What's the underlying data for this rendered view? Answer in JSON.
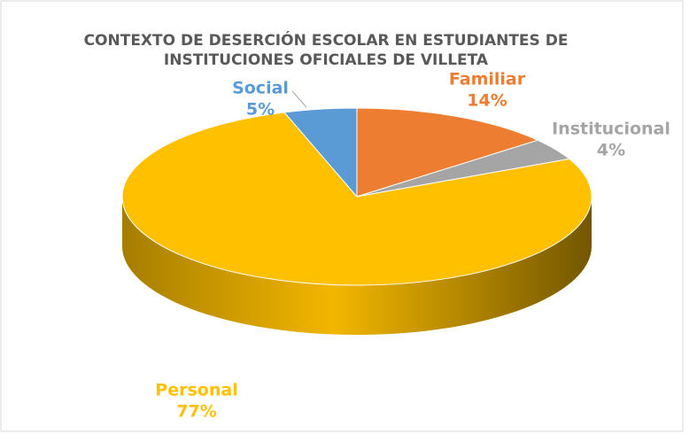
{
  "chart_data": {
    "type": "pie",
    "title": [
      "CONTEXTO DE DESERCIÓN ESCOLAR EN ESTUDIANTES DE",
      "INSTITUCIONES OFICIALES DE VILLETA"
    ],
    "categories": [
      "Familiar",
      "Institucional",
      "Personal",
      "Social"
    ],
    "values": [
      14,
      4,
      77,
      5
    ],
    "value_labels": [
      "14%",
      "4%",
      "77%",
      "5%"
    ],
    "colors": [
      "#ED7D31",
      "#A5A5A5",
      "#FFC000",
      "#5B9BD5"
    ],
    "label_colors": [
      "#ED7D31",
      "#A5A5A5",
      "#FFC000",
      "#5B9BD5"
    ]
  }
}
